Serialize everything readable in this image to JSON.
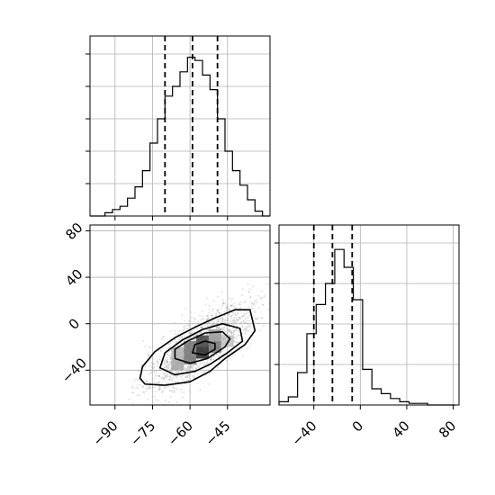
{
  "chart_data": [
    {
      "type": "histogram",
      "panel": "top-left",
      "variable": "x",
      "xlim": [
        -100,
        -28
      ],
      "ylim": [
        0,
        1.0
      ],
      "xticks": [
        -90,
        -75,
        -60,
        -45
      ],
      "bin_edges": [
        -100,
        -97,
        -94,
        -91,
        -88,
        -85,
        -82,
        -79,
        -76,
        -73,
        -70,
        -67,
        -64,
        -61,
        -58,
        -55,
        -52,
        -49,
        -46,
        -43,
        -40,
        -37,
        -34,
        -31,
        -28
      ],
      "counts": [
        0.0,
        0.0,
        0.02,
        0.04,
        0.06,
        0.11,
        0.18,
        0.28,
        0.45,
        0.6,
        0.74,
        0.8,
        0.89,
        0.98,
        0.96,
        0.87,
        0.78,
        0.6,
        0.4,
        0.28,
        0.19,
        0.1,
        0.03,
        0.0
      ],
      "quantile_lines": [
        -70,
        -59,
        -49
      ],
      "grid": true
    },
    {
      "type": "heatmap",
      "panel": "bottom-left",
      "xvar": "x",
      "yvar": "y",
      "xlim": [
        -100,
        -28
      ],
      "ylim": [
        -70,
        85
      ],
      "xticks": [
        -90,
        -75,
        -60,
        -45
      ],
      "yticks": [
        -40,
        0,
        40,
        80
      ],
      "grid": true,
      "density_peak": [
        -56,
        -19
      ],
      "density_cells": [
        {
          "x": -65,
          "y": -35,
          "v": 0.35
        },
        {
          "x": -60,
          "y": -30,
          "v": 0.55
        },
        {
          "x": -60,
          "y": -20,
          "v": 0.55
        },
        {
          "x": -55,
          "y": -25,
          "v": 0.85
        },
        {
          "x": -55,
          "y": -15,
          "v": 0.75
        },
        {
          "x": -50,
          "y": -20,
          "v": 0.55
        },
        {
          "x": -50,
          "y": -10,
          "v": 0.4
        },
        {
          "x": -65,
          "y": -25,
          "v": 0.3
        },
        {
          "x": -45,
          "y": -15,
          "v": 0.25
        }
      ],
      "contours": [
        {
          "level": 1,
          "points": [
            [
              -80,
              -47
            ],
            [
              -78,
              -52
            ],
            [
              -70,
              -53
            ],
            [
              -60,
              -50
            ],
            [
              -52,
              -41
            ],
            [
              -46,
              -30
            ],
            [
              -38,
              -18
            ],
            [
              -34,
              -6
            ],
            [
              -36,
              12
            ],
            [
              -42,
              12
            ],
            [
              -50,
              5
            ],
            [
              -58,
              -3
            ],
            [
              -66,
              -12
            ],
            [
              -74,
              -24
            ],
            [
              -79,
              -37
            ],
            [
              -80,
              -47
            ]
          ]
        },
        {
          "level": 2,
          "points": [
            [
              -72,
              -38
            ],
            [
              -66,
              -44
            ],
            [
              -58,
              -41
            ],
            [
              -52,
              -35
            ],
            [
              -45,
              -25
            ],
            [
              -39,
              -15
            ],
            [
              -40,
              -4
            ],
            [
              -47,
              0
            ],
            [
              -55,
              -5
            ],
            [
              -63,
              -14
            ],
            [
              -70,
              -25
            ],
            [
              -72,
              -38
            ]
          ]
        },
        {
          "level": 3,
          "points": [
            [
              -66,
              -30
            ],
            [
              -60,
              -34
            ],
            [
              -53,
              -30
            ],
            [
              -46,
              -20
            ],
            [
              -44,
              -13
            ],
            [
              -47,
              -7
            ],
            [
              -54,
              -8
            ],
            [
              -61,
              -15
            ],
            [
              -66,
              -22
            ],
            [
              -66,
              -30
            ]
          ]
        },
        {
          "level": 4,
          "points": [
            [
              -59,
              -25
            ],
            [
              -54,
              -27
            ],
            [
              -50,
              -22
            ],
            [
              -50,
              -17
            ],
            [
              -54,
              -15
            ],
            [
              -58,
              -18
            ],
            [
              -59,
              -25
            ]
          ]
        }
      ]
    },
    {
      "type": "histogram",
      "panel": "bottom-right",
      "variable": "y",
      "xlim": [
        -70,
        85
      ],
      "ylim": [
        0,
        1.0
      ],
      "xticks": [
        -40,
        0,
        40,
        80
      ],
      "bin_edges": [
        -70,
        -62,
        -54,
        -46,
        -38,
        -30,
        -22,
        -14,
        -6,
        2,
        10,
        18,
        26,
        34,
        42,
        50,
        58,
        66,
        74,
        82
      ],
      "counts": [
        0.02,
        0.05,
        0.2,
        0.44,
        0.62,
        0.75,
        0.96,
        0.85,
        0.65,
        0.22,
        0.1,
        0.07,
        0.04,
        0.02,
        0.01,
        0.01,
        0.0,
        0.0,
        0.0
      ],
      "quantile_lines": [
        -40,
        -24,
        -7
      ],
      "grid": true
    }
  ]
}
